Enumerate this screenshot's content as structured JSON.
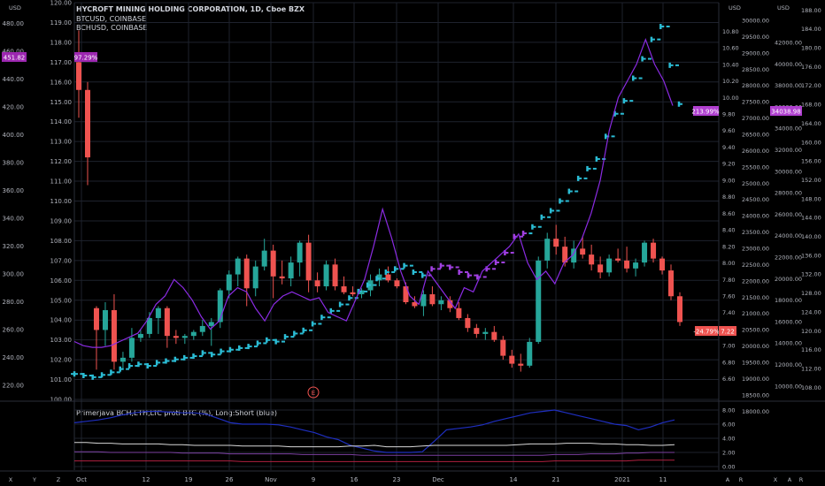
{
  "chart_data": {
    "type": "line",
    "title": "HYCROFT MINING HOLDING CORPORATION, 1D, Cboe BZX",
    "overlays": [
      "BTCUSD, COINBASE",
      "BCHUSD, COINBASE"
    ],
    "x_ticks": [
      "Oct",
      "12",
      "19",
      "26",
      "Nov",
      "9",
      "16",
      "23",
      "Dec",
      "14",
      "21",
      "2021",
      "11"
    ],
    "axes": {
      "far_left": {
        "unit": "USD",
        "ticks": [
          "480.00",
          "460.00",
          "440.00",
          "420.00",
          "400.00",
          "380.00",
          "360.00",
          "340.00",
          "320.00",
          "300.00",
          "280.00",
          "260.00",
          "240.00",
          "220.00"
        ],
        "min": 210,
        "max": 495,
        "last_label": "451.82"
      },
      "left": {
        "ticks": [
          "120.00",
          "119.00",
          "118.00",
          "117.00",
          "116.00",
          "115.00",
          "114.00",
          "113.00",
          "112.00",
          "111.00",
          "110.00",
          "109.00",
          "108.00",
          "107.00",
          "106.00",
          "105.00",
          "104.00",
          "103.00",
          "102.00",
          "101.00",
          "100.00"
        ],
        "min": 100,
        "max": 120,
        "last_label": "97.29%"
      },
      "right_btc": {
        "unit": "USD",
        "ticks": [
          "30000.00",
          "29500.00",
          "29000.00",
          "28500.00",
          "28000.00",
          "27500.00",
          "27000.00",
          "26500.00",
          "26000.00",
          "25500.00",
          "25000.00",
          "24500.00",
          "24000.00",
          "23500.00",
          "23000.00",
          "22500.00",
          "22000.00",
          "21500.00",
          "21000.00",
          "20500.00",
          "20000.00",
          "19500.00",
          "19000.00",
          "18500.00",
          "18000.00"
        ],
        "min": 18000,
        "max": 30000
      },
      "right_small": {
        "ticks": [
          "10.80",
          "10.60",
          "10.40",
          "10.20",
          "10.00",
          "9.80",
          "9.60",
          "9.40",
          "9.20",
          "9.00",
          "8.80",
          "8.60",
          "8.40",
          "8.20",
          "8.00",
          "7.80",
          "7.60",
          "7.40",
          "7.20",
          "7.00",
          "6.80",
          "6.60"
        ],
        "min": 6.5,
        "max": 10.9,
        "last_label_pct": "213.99%",
        "last_label_neg": "-24.79%",
        "last_label_val": "7.22"
      },
      "far_right": {
        "unit": "USD",
        "ticks": [
          "188.00",
          "184.00",
          "180.00",
          "176.00",
          "172.00",
          "168.00",
          "164.00",
          "160.00",
          "156.00",
          "152.00",
          "148.00",
          "144.00",
          "140.00",
          "136.00",
          "132.00",
          "128.00",
          "124.00",
          "120.00",
          "116.00",
          "112.00",
          "108.00"
        ],
        "min": 106,
        "max": 189
      },
      "second_right": {
        "ticks": [
          "42000.00",
          "40000.00",
          "38000.00",
          "36000.00",
          "34000.00",
          "32000.00",
          "30000.00",
          "28000.00",
          "26000.00",
          "24000.00",
          "22000.00",
          "20000.00",
          "18000.00",
          "16000.00",
          "14000.00",
          "12000.00",
          "10000.00"
        ],
        "last_label": "34038.98"
      }
    },
    "series": [
      {
        "name": "HYMC",
        "kind": "candles",
        "values": [
          [
            117,
            118.6,
            114.2,
            115.6
          ],
          [
            115.6,
            116,
            110.8,
            112.2
          ],
          [
            104.6,
            104.7,
            101.5,
            103.5
          ],
          [
            103.5,
            104.9,
            102.7,
            104.5
          ],
          [
            104.5,
            105.3,
            101.5,
            101.9
          ],
          [
            101.9,
            102.4,
            101.5,
            102.1
          ],
          [
            102.1,
            103.6,
            101.9,
            103.1
          ],
          [
            103.1,
            103.5,
            102.9,
            103.3
          ],
          [
            103.3,
            104.4,
            103.1,
            104.1
          ],
          [
            104.1,
            104.7,
            103.3,
            104.6
          ],
          [
            104.6,
            104.7,
            102.6,
            103.2
          ],
          [
            103.2,
            103.5,
            102.8,
            103.1
          ],
          [
            103.1,
            103.3,
            102.8,
            103.2
          ],
          [
            103.2,
            103.5,
            103.0,
            103.4
          ],
          [
            103.4,
            104.0,
            103.2,
            103.7
          ],
          [
            103.7,
            104.1,
            102.7,
            103.9
          ],
          [
            103.9,
            105.6,
            103.6,
            105.5
          ],
          [
            105.5,
            106.5,
            105.1,
            106.3
          ],
          [
            106.3,
            107.2,
            105.7,
            107.1
          ],
          [
            107.1,
            107.3,
            104.7,
            105.6
          ],
          [
            105.6,
            107.0,
            105.2,
            106.7
          ],
          [
            106.7,
            108.1,
            106.5,
            107.5
          ],
          [
            107.5,
            107.8,
            105.1,
            106.2
          ],
          [
            106.2,
            107.0,
            105.8,
            106.1
          ],
          [
            106.1,
            107.2,
            105.7,
            106.9
          ],
          [
            106.9,
            108.0,
            106.2,
            107.9
          ],
          [
            107.9,
            108.3,
            105.4,
            106.0
          ],
          [
            106.0,
            106.4,
            105.4,
            105.7
          ],
          [
            105.7,
            107.0,
            105.5,
            106.8
          ],
          [
            106.8,
            107.1,
            105.5,
            105.7
          ],
          [
            105.7,
            106.2,
            105.3,
            105.4
          ],
          [
            105.4,
            105.7,
            105.2,
            105.3
          ],
          [
            105.3,
            105.6,
            105.1,
            105.5
          ],
          [
            105.5,
            106.3,
            105.2,
            106.0
          ],
          [
            106.0,
            106.6,
            105.7,
            106.3
          ],
          [
            106.3,
            106.7,
            105.9,
            106.0
          ],
          [
            106.0,
            106.1,
            105.6,
            105.7
          ],
          [
            105.7,
            105.9,
            104.8,
            104.9
          ],
          [
            104.9,
            105.2,
            104.6,
            104.7
          ],
          [
            104.7,
            105.5,
            104.2,
            105.3
          ],
          [
            105.3,
            105.7,
            104.7,
            104.8
          ],
          [
            104.8,
            105.2,
            104.5,
            105.0
          ],
          [
            105.0,
            105.2,
            104.4,
            104.6
          ],
          [
            104.6,
            104.9,
            104.0,
            104.1
          ],
          [
            104.1,
            104.3,
            103.4,
            103.6
          ],
          [
            103.6,
            103.8,
            103.1,
            103.3
          ],
          [
            103.3,
            103.6,
            103.0,
            103.4
          ],
          [
            103.4,
            103.7,
            102.9,
            103.0
          ],
          [
            103.0,
            103.2,
            102.0,
            102.2
          ],
          [
            102.2,
            102.5,
            101.6,
            101.8
          ],
          [
            101.8,
            102.3,
            101.4,
            101.7
          ],
          [
            101.7,
            103.1,
            101.6,
            102.9
          ],
          [
            102.9,
            107.2,
            102.8,
            107.0
          ],
          [
            107.0,
            108.4,
            106.6,
            108.1
          ],
          [
            108.1,
            108.8,
            107.3,
            107.7
          ],
          [
            107.7,
            108.2,
            106.7,
            106.9
          ],
          [
            106.9,
            108.0,
            106.6,
            107.6
          ],
          [
            107.6,
            108.2,
            107.1,
            107.3
          ],
          [
            107.3,
            107.8,
            106.5,
            106.8
          ],
          [
            106.8,
            107.2,
            106.1,
            106.4
          ],
          [
            106.4,
            107.3,
            106.2,
            107.1
          ],
          [
            107.1,
            107.6,
            106.9,
            107.0
          ],
          [
            107.0,
            107.7,
            106.4,
            106.6
          ],
          [
            106.6,
            107.1,
            106.2,
            106.9
          ],
          [
            106.9,
            108.0,
            106.7,
            107.9
          ],
          [
            107.9,
            108.1,
            106.9,
            107.1
          ],
          [
            107.1,
            107.2,
            106.3,
            106.5
          ],
          [
            106.5,
            106.8,
            105.0,
            105.2
          ],
          [
            105.2,
            105.4,
            103.7,
            103.9
          ]
        ]
      },
      {
        "name": "BTCUSD",
        "kind": "bars",
        "values": [
          18650,
          18600,
          18550,
          18620,
          18700,
          18800,
          18900,
          18950,
          18900,
          19000,
          19050,
          19100,
          19150,
          19200,
          19300,
          19250,
          19350,
          19400,
          19450,
          19500,
          19600,
          19700,
          19650,
          19800,
          19900,
          20000,
          20200,
          20400,
          20600,
          20800,
          21000,
          21200,
          21400,
          21600,
          21800,
          21900,
          22000,
          21800,
          21700,
          21900,
          22000,
          21950,
          21800,
          21700,
          21650,
          21900,
          22100,
          22400,
          22900,
          23000,
          23200,
          23500,
          23700,
          24000,
          24300,
          24700,
          25000,
          25300,
          26000,
          26700,
          27100,
          27800,
          28400,
          29000,
          29400,
          28200,
          27000
        ]
      },
      {
        "name": "BCHUSD",
        "kind": "line",
        "values": [
          7.05,
          7.0,
          6.98,
          6.98,
          7.0,
          7.05,
          7.1,
          7.15,
          7.3,
          7.5,
          7.6,
          7.8,
          7.7,
          7.55,
          7.35,
          7.2,
          7.3,
          7.6,
          7.7,
          7.65,
          7.45,
          7.3,
          7.5,
          7.6,
          7.65,
          7.6,
          7.55,
          7.58,
          7.4,
          7.35,
          7.3,
          7.55,
          7.8,
          8.2,
          8.65,
          8.3,
          7.9,
          7.6,
          7.5,
          7.9,
          7.75,
          7.6,
          7.45,
          7.7,
          7.65,
          7.9,
          8.0,
          8.1,
          8.2,
          8.35,
          8.0,
          7.8,
          7.9,
          7.75,
          8.0,
          8.1,
          8.3,
          8.6,
          9.0,
          9.6,
          10.0,
          10.2,
          10.4,
          10.7,
          10.4,
          10.2,
          9.9
        ]
      }
    ],
    "indicator": {
      "label": "Primerjava BCH,ETH,LTC proti BTC (%), Long:Short (blue)",
      "ticks": [
        "8.00",
        "6.00",
        "4.00",
        "2.00",
        "0.00"
      ],
      "min": 0,
      "max": 8.5,
      "series": [
        {
          "name": "Long:Short (blue)",
          "values": [
            6.2,
            6.4,
            6.6,
            6.9,
            7.3,
            7.6,
            7.8,
            7.8,
            7.7,
            7.6,
            7.6,
            7.4,
            6.8,
            6.2,
            6.0,
            6.0,
            6.0,
            5.9,
            5.6,
            5.2,
            4.8,
            4.2,
            3.8,
            3.0,
            2.6,
            2.2,
            2.0,
            2.0,
            2.0,
            2.1,
            3.6,
            5.2,
            5.4,
            5.6,
            5.9,
            6.4,
            6.8,
            7.2,
            7.6,
            7.8,
            8.0,
            7.6,
            7.2,
            6.8,
            6.4,
            6.0,
            5.8,
            5.2,
            5.6,
            6.2,
            6.6
          ]
        },
        {
          "name": "white",
          "values": [
            3.4,
            3.4,
            3.3,
            3.3,
            3.2,
            3.2,
            3.2,
            3.2,
            3.1,
            3.1,
            3.0,
            3.0,
            3.0,
            3.0,
            2.9,
            2.9,
            2.9,
            2.9,
            2.8,
            2.8,
            2.8,
            2.8,
            2.8,
            2.9,
            2.9,
            3.0,
            2.8,
            2.8,
            2.8,
            2.9,
            3.0,
            3.0,
            3.0,
            3.0,
            3.0,
            3.0,
            3.0,
            3.1,
            3.2,
            3.2,
            3.2,
            3.3,
            3.3,
            3.3,
            3.2,
            3.2,
            3.1,
            3.1,
            3.0,
            3.0,
            3.1
          ]
        },
        {
          "name": "purple",
          "values": [
            2.1,
            2.1,
            2.1,
            2.0,
            2.0,
            2.0,
            2.0,
            2.0,
            2.0,
            1.9,
            1.9,
            1.9,
            1.9,
            1.8,
            1.8,
            1.8,
            1.8,
            1.8,
            1.8,
            1.7,
            1.7,
            1.7,
            1.7,
            1.7,
            1.6,
            1.6,
            1.6,
            1.6,
            1.6,
            1.6,
            1.6,
            1.6,
            1.6,
            1.6,
            1.6,
            1.6,
            1.6,
            1.6,
            1.6,
            1.6,
            1.7,
            1.7,
            1.7,
            1.8,
            1.8,
            1.8,
            1.9,
            1.9,
            2.0,
            2.0,
            2.0
          ]
        },
        {
          "name": "red",
          "values": [
            0.8,
            0.8,
            0.8,
            0.8,
            0.8,
            0.8,
            0.8,
            0.8,
            0.8,
            0.8,
            0.8,
            0.8,
            0.8,
            0.8,
            0.7,
            0.7,
            0.7,
            0.7,
            0.7,
            0.7,
            0.7,
            0.7,
            0.7,
            0.7,
            0.7,
            0.7,
            0.7,
            0.7,
            0.7,
            0.7,
            0.7,
            0.7,
            0.7,
            0.7,
            0.7,
            0.7,
            0.7,
            0.7,
            0.7,
            0.7,
            0.8,
            0.8,
            0.8,
            0.8,
            0.8,
            0.8,
            0.8,
            0.9,
            0.9,
            0.9,
            0.9
          ]
        }
      ]
    },
    "earnings_marker": "E",
    "bottom_left_icons": [
      "X",
      "Y",
      "Z"
    ],
    "bottom_right_icons": [
      "A",
      "R",
      "X",
      "A",
      "R"
    ],
    "colors": {
      "up": "#26a69a",
      "down": "#ef5350",
      "btc": "#2bbcd4",
      "bch": "#a040e0",
      "indicator_blue": "#1f2fc0",
      "grid": "#1e222d",
      "text": "#b2b5be"
    }
  }
}
